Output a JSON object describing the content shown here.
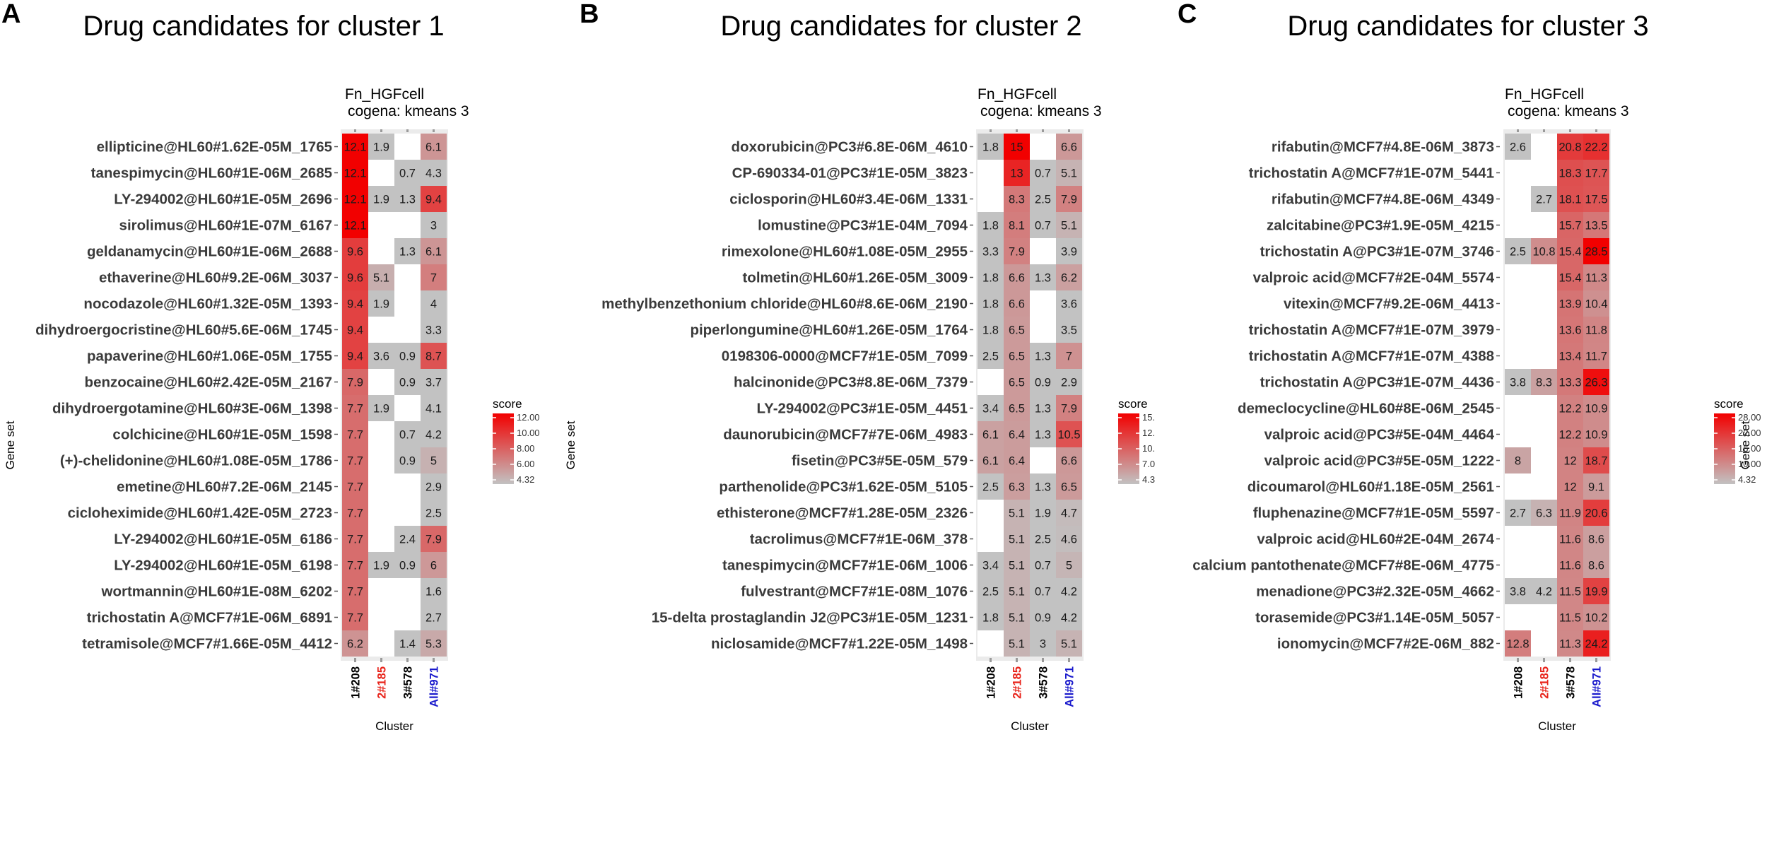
{
  "chart_data": [
    {
      "type": "heatmap",
      "panel_letter": "A",
      "title": "Drug candidates for cluster 1",
      "subtitle_lines": [
        "Fn_HGFcell",
        "cogena: kmeans 3"
      ],
      "xlabel": "Cluster",
      "ylabel": "Gene set",
      "columns": [
        "1#208",
        "2#185",
        "3#578",
        "All#971"
      ],
      "column_colors": [
        "#000000",
        "#e8231a",
        "#000000",
        "#1a1acc"
      ],
      "legend": {
        "title": "score",
        "ticks": [
          "12.00",
          "10.00",
          "8.00",
          "6.00",
          "4.32"
        ],
        "min": 4.32,
        "max": 12.0
      },
      "rows": [
        "ellipticine@HL60#1.62E-05M_1765",
        "tanespimycin@HL60#1E-06M_2685",
        "LY-294002@HL60#1E-05M_2696",
        "sirolimus@HL60#1E-07M_6167",
        "geldanamycin@HL60#1E-06M_2688",
        "ethaverine@HL60#9.2E-06M_3037",
        "nocodazole@HL60#1.32E-05M_1393",
        "dihydroergocristine@HL60#5.6E-06M_1745",
        "papaverine@HL60#1.06E-05M_1755",
        "benzocaine@HL60#2.42E-05M_2167",
        "dihydroergotamine@HL60#3E-06M_1398",
        "colchicine@HL60#1E-05M_1598",
        "(+)-chelidonine@HL60#1.08E-05M_1786",
        "emetine@HL60#7.2E-06M_2145",
        "cicloheximide@HL60#1.42E-05M_2723",
        "LY-294002@HL60#1E-05M_6186",
        "LY-294002@HL60#1E-05M_6198",
        "wortmannin@HL60#1E-08M_6202",
        "trichostatin A@MCF7#1E-06M_6891",
        "tetramisole@MCF7#1.66E-05M_4412"
      ],
      "values": [
        [
          12.1,
          1.9,
          null,
          6.1
        ],
        [
          12.1,
          null,
          0.7,
          4.3
        ],
        [
          12.1,
          1.9,
          1.3,
          9.4
        ],
        [
          12.1,
          null,
          null,
          3
        ],
        [
          9.6,
          null,
          1.3,
          6.1
        ],
        [
          9.6,
          5.1,
          null,
          7
        ],
        [
          9.4,
          1.9,
          null,
          4
        ],
        [
          9.4,
          null,
          null,
          3.3
        ],
        [
          9.4,
          3.6,
          0.9,
          8.7
        ],
        [
          7.9,
          null,
          0.9,
          3.7
        ],
        [
          7.7,
          1.9,
          null,
          4.1
        ],
        [
          7.7,
          null,
          0.7,
          4.2
        ],
        [
          7.7,
          null,
          0.9,
          5
        ],
        [
          7.7,
          null,
          null,
          2.9
        ],
        [
          7.7,
          null,
          null,
          2.5
        ],
        [
          7.7,
          null,
          2.4,
          7.9
        ],
        [
          7.7,
          1.9,
          0.9,
          6
        ],
        [
          7.7,
          null,
          null,
          1.6
        ],
        [
          7.7,
          null,
          null,
          2.7
        ],
        [
          6.2,
          null,
          1.4,
          5.3
        ]
      ],
      "labels": [
        [
          "12.1",
          "1.9",
          "",
          "6.1"
        ],
        [
          "12.1",
          "",
          "0.7",
          "4.3"
        ],
        [
          "12.1",
          "1.9",
          "1.3",
          "9.4"
        ],
        [
          "12.1",
          "",
          "",
          "3"
        ],
        [
          "9.6",
          "",
          "1.3",
          "6.1"
        ],
        [
          "9.6",
          "5.1",
          "",
          "7"
        ],
        [
          "9.4",
          "1.9",
          "",
          "4"
        ],
        [
          "9.4",
          "",
          "",
          "3.3"
        ],
        [
          "9.4",
          "3.6",
          "0.9",
          "8.7"
        ],
        [
          "7.9",
          "",
          "0.9",
          "3.7"
        ],
        [
          "7.7",
          "1.9",
          "",
          "4.1"
        ],
        [
          "7.7",
          "",
          "0.7",
          "4.2"
        ],
        [
          "7.7",
          "",
          "0.9",
          "5"
        ],
        [
          "7.7",
          "",
          "",
          "2.9"
        ],
        [
          "7.7",
          "",
          "",
          "2.5"
        ],
        [
          "7.7",
          "",
          "2.4",
          "7.9"
        ],
        [
          "7.7",
          "1.9",
          "0.9",
          "6"
        ],
        [
          "7.7",
          "",
          "",
          "1.6"
        ],
        [
          "7.7",
          "",
          "",
          "2.7"
        ],
        [
          "6.2",
          "",
          "1.4",
          "5.3"
        ]
      ]
    },
    {
      "type": "heatmap",
      "panel_letter": "B",
      "title": "Drug candidates for cluster 2",
      "subtitle_lines": [
        "Fn_HGFcell",
        "cogena: kmeans 3"
      ],
      "xlabel": "Cluster",
      "ylabel": "Gene set",
      "columns": [
        "1#208",
        "2#185",
        "3#578",
        "All#971"
      ],
      "column_colors": [
        "#000000",
        "#e8231a",
        "#000000",
        "#1a1acc"
      ],
      "legend": {
        "title": "score",
        "ticks": [
          "15.",
          "12.",
          "10.",
          "7.0",
          "4.3"
        ],
        "min": 4.3,
        "max": 15.0
      },
      "rows": [
        "doxorubicin@PC3#6.8E-06M_4610",
        "CP-690334-01@PC3#1E-05M_3823",
        "ciclosporin@HL60#3.4E-06M_1331",
        "lomustine@PC3#1E-04M_7094",
        "rimexolone@HL60#1.08E-05M_2955",
        "tolmetin@HL60#1.26E-05M_3009",
        "methylbenzethonium chloride@HL60#8.6E-06M_2190",
        "piperlongumine@HL60#1.26E-05M_1764",
        "0198306-0000@MCF7#1E-05M_7099",
        "halcinonide@PC3#8.8E-06M_7379",
        "LY-294002@PC3#1E-05M_4451",
        "daunorubicin@MCF7#7E-06M_4983",
        "fisetin@PC3#5E-05M_579",
        "parthenolide@PC3#1.62E-05M_5105",
        "ethisterone@MCF7#1.28E-05M_2326",
        "tacrolimus@MCF7#1E-06M_378",
        "tanespimycin@MCF7#1E-06M_1006",
        "fulvestrant@MCF7#1E-08M_1076",
        "15-delta prostaglandin J2@PC3#1E-05M_1231",
        "niclosamide@MCF7#1.22E-05M_1498"
      ],
      "values": [
        [
          1.8,
          15,
          null,
          6.6
        ],
        [
          null,
          13,
          0.7,
          5.1
        ],
        [
          null,
          8.3,
          2.5,
          7.9
        ],
        [
          1.8,
          8.1,
          0.7,
          5.1
        ],
        [
          3.3,
          7.9,
          null,
          3.9
        ],
        [
          1.8,
          6.6,
          1.3,
          6.2
        ],
        [
          1.8,
          6.6,
          null,
          3.6
        ],
        [
          1.8,
          6.5,
          null,
          3.5
        ],
        [
          2.5,
          6.5,
          1.3,
          7
        ],
        [
          null,
          6.5,
          0.9,
          2.9
        ],
        [
          3.4,
          6.5,
          1.3,
          7.9
        ],
        [
          6.1,
          6.4,
          1.3,
          10.5
        ],
        [
          6.1,
          6.4,
          null,
          6.6
        ],
        [
          2.5,
          6.3,
          1.3,
          6.5
        ],
        [
          null,
          5.1,
          1.9,
          4.7
        ],
        [
          null,
          5.1,
          2.5,
          4.6
        ],
        [
          3.4,
          5.1,
          0.7,
          5
        ],
        [
          2.5,
          5.1,
          0.7,
          4.2
        ],
        [
          1.8,
          5.1,
          0.9,
          4.2
        ],
        [
          null,
          5.1,
          3,
          5.1
        ]
      ],
      "labels": [
        [
          "1.8",
          "15",
          "",
          "6.6"
        ],
        [
          "",
          "13",
          "0.7",
          "5.1"
        ],
        [
          "",
          "8.3",
          "2.5",
          "7.9"
        ],
        [
          "1.8",
          "8.1",
          "0.7",
          "5.1"
        ],
        [
          "3.3",
          "7.9",
          "",
          "3.9"
        ],
        [
          "1.8",
          "6.6",
          "1.3",
          "6.2"
        ],
        [
          "1.8",
          "6.6",
          "",
          "3.6"
        ],
        [
          "1.8",
          "6.5",
          "",
          "3.5"
        ],
        [
          "2.5",
          "6.5",
          "1.3",
          "7"
        ],
        [
          "",
          "6.5",
          "0.9",
          "2.9"
        ],
        [
          "3.4",
          "6.5",
          "1.3",
          "7.9"
        ],
        [
          "6.1",
          "6.4",
          "1.3",
          "10.5"
        ],
        [
          "6.1",
          "6.4",
          "",
          "6.6"
        ],
        [
          "2.5",
          "6.3",
          "1.3",
          "6.5"
        ],
        [
          "",
          "5.1",
          "1.9",
          "4.7"
        ],
        [
          "",
          "5.1",
          "2.5",
          "4.6"
        ],
        [
          "3.4",
          "5.1",
          "0.7",
          "5"
        ],
        [
          "2.5",
          "5.1",
          "0.7",
          "4.2"
        ],
        [
          "1.8",
          "5.1",
          "0.9",
          "4.2"
        ],
        [
          "",
          "5.1",
          "3",
          "5.1"
        ]
      ]
    },
    {
      "type": "heatmap",
      "panel_letter": "C",
      "title": "Drug candidates for cluster 3",
      "subtitle_lines": [
        "Fn_HGFcell",
        "cogena: kmeans 3"
      ],
      "xlabel": "Cluster",
      "ylabel": "Gene set",
      "columns": [
        "1#208",
        "2#185",
        "3#578",
        "All#971"
      ],
      "column_colors": [
        "#000000",
        "#e8231a",
        "#000000",
        "#1a1acc"
      ],
      "legend": {
        "title": "score",
        "ticks": [
          "28.00",
          "22.00",
          "16.00",
          "10.00",
          "4.32"
        ],
        "min": 4.32,
        "max": 28.0
      },
      "rows": [
        "rifabutin@MCF7#4.8E-06M_3873",
        "trichostatin A@MCF7#1E-07M_5441",
        "rifabutin@MCF7#4.8E-06M_4349",
        "zalcitabine@PC3#1.9E-05M_4215",
        "trichostatin A@PC3#1E-07M_3746",
        "valproic acid@MCF7#2E-04M_5574",
        "vitexin@MCF7#9.2E-06M_4413",
        "trichostatin A@MCF7#1E-07M_3979",
        "trichostatin A@MCF7#1E-07M_4388",
        "trichostatin A@PC3#1E-07M_4436",
        "demeclocycline@HL60#8E-06M_2545",
        "valproic acid@PC3#5E-04M_4464",
        "valproic acid@PC3#5E-05M_1222",
        "dicoumarol@HL60#1.18E-05M_2561",
        "fluphenazine@MCF7#1E-05M_5597",
        "valproic acid@HL60#2E-04M_2674",
        "calcium pantothenate@MCF7#8E-06M_4775",
        "menadione@PC3#2.32E-05M_4662",
        "torasemide@PC3#1.14E-05M_5057",
        "ionomycin@MCF7#2E-06M_882"
      ],
      "values": [
        [
          2.6,
          null,
          20.8,
          22.2
        ],
        [
          null,
          null,
          18.3,
          17.7
        ],
        [
          null,
          2.7,
          18.1,
          17.5
        ],
        [
          null,
          null,
          15.7,
          13.5
        ],
        [
          2.5,
          10.8,
          15.4,
          28.5
        ],
        [
          null,
          null,
          15.4,
          11.3
        ],
        [
          null,
          null,
          13.9,
          10.4
        ],
        [
          null,
          null,
          13.6,
          11.8
        ],
        [
          null,
          null,
          13.4,
          11.7
        ],
        [
          3.8,
          8.3,
          13.3,
          26.3
        ],
        [
          null,
          null,
          12.2,
          10.9
        ],
        [
          null,
          null,
          12.2,
          10.9
        ],
        [
          8,
          null,
          12,
          18.7
        ],
        [
          null,
          null,
          12,
          9.1
        ],
        [
          2.7,
          6.3,
          11.9,
          20.6
        ],
        [
          null,
          null,
          11.6,
          8.6
        ],
        [
          null,
          null,
          11.6,
          8.6
        ],
        [
          3.8,
          4.2,
          11.5,
          19.9
        ],
        [
          null,
          null,
          11.5,
          10.2
        ],
        [
          12.8,
          null,
          11.3,
          24.2
        ]
      ],
      "labels": [
        [
          "2.6",
          "",
          "20.8",
          "22.2"
        ],
        [
          "",
          "",
          "18.3",
          "17.7"
        ],
        [
          "",
          "2.7",
          "18.1",
          "17.5"
        ],
        [
          "",
          "",
          "15.7",
          "13.5"
        ],
        [
          "2.5",
          "10.8",
          "15.4",
          "28.5"
        ],
        [
          "",
          "",
          "15.4",
          "11.3"
        ],
        [
          "",
          "",
          "13.9",
          "10.4"
        ],
        [
          "",
          "",
          "13.6",
          "11.8"
        ],
        [
          "",
          "",
          "13.4",
          "11.7"
        ],
        [
          "3.8",
          "8.3",
          "13.3",
          "26.3"
        ],
        [
          "",
          "",
          "12.2",
          "10.9"
        ],
        [
          "",
          "",
          "12.2",
          "10.9"
        ],
        [
          "8",
          "",
          "12",
          "18.7"
        ],
        [
          "",
          "",
          "12",
          "9.1"
        ],
        [
          "2.7",
          "6.3",
          "11.9",
          "20.6"
        ],
        [
          "",
          "",
          "11.6",
          "8.6"
        ],
        [
          "",
          "",
          "11.6",
          "8.6"
        ],
        [
          "3.8",
          "4.2",
          "11.5",
          "19.9"
        ],
        [
          "",
          "",
          "11.5",
          "10.2"
        ],
        [
          "12.8",
          "",
          "11.3",
          "24.2"
        ]
      ]
    }
  ]
}
